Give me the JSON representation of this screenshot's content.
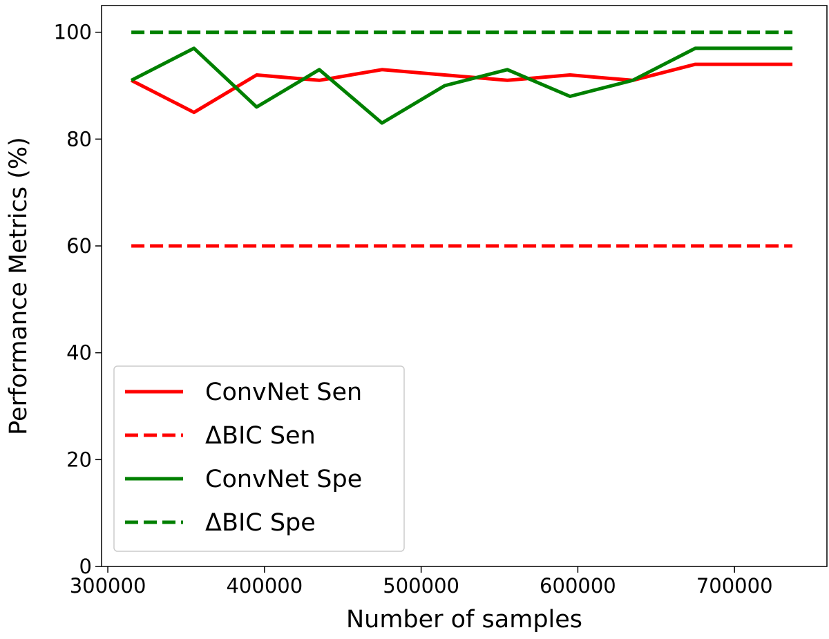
{
  "chart_data": {
    "type": "line",
    "title": "",
    "xlabel": "Number of samples",
    "ylabel": "Performance Metrics (%)",
    "xlim": [
      296000,
      759000
    ],
    "ylim": [
      0,
      105
    ],
    "xticks": [
      300000,
      400000,
      500000,
      600000,
      700000
    ],
    "xtick_labels": [
      "300000",
      "400000",
      "500000",
      "600000",
      "700000"
    ],
    "yticks": [
      0,
      20,
      40,
      60,
      80,
      100
    ],
    "ytick_labels": [
      "0",
      "20",
      "40",
      "60",
      "80",
      "100"
    ],
    "grid": false,
    "legend_position": "lower-left",
    "x": [
      315000,
      355000,
      395000,
      435000,
      475000,
      515000,
      555000,
      595000,
      635000,
      675000,
      715000,
      737000
    ],
    "series": [
      {
        "name": "ConvNet Sen",
        "color": "#ff0000",
        "dash": "solid",
        "values": [
          91,
          85,
          92,
          91,
          93,
          92,
          91,
          92,
          91,
          94,
          94,
          94
        ]
      },
      {
        "name": "ΔBIC Sen",
        "color": "#ff0000",
        "dash": "dashed",
        "values": [
          60,
          60,
          60,
          60,
          60,
          60,
          60,
          60,
          60,
          60,
          60,
          60
        ]
      },
      {
        "name": "ConvNet Spe",
        "color": "#008000",
        "dash": "solid",
        "values": [
          91,
          97,
          86,
          93,
          83,
          90,
          93,
          88,
          91,
          97,
          97,
          97
        ]
      },
      {
        "name": "ΔBIC Spe",
        "color": "#008000",
        "dash": "dashed",
        "values": [
          100,
          100,
          100,
          100,
          100,
          100,
          100,
          100,
          100,
          100,
          100,
          100
        ]
      }
    ]
  }
}
